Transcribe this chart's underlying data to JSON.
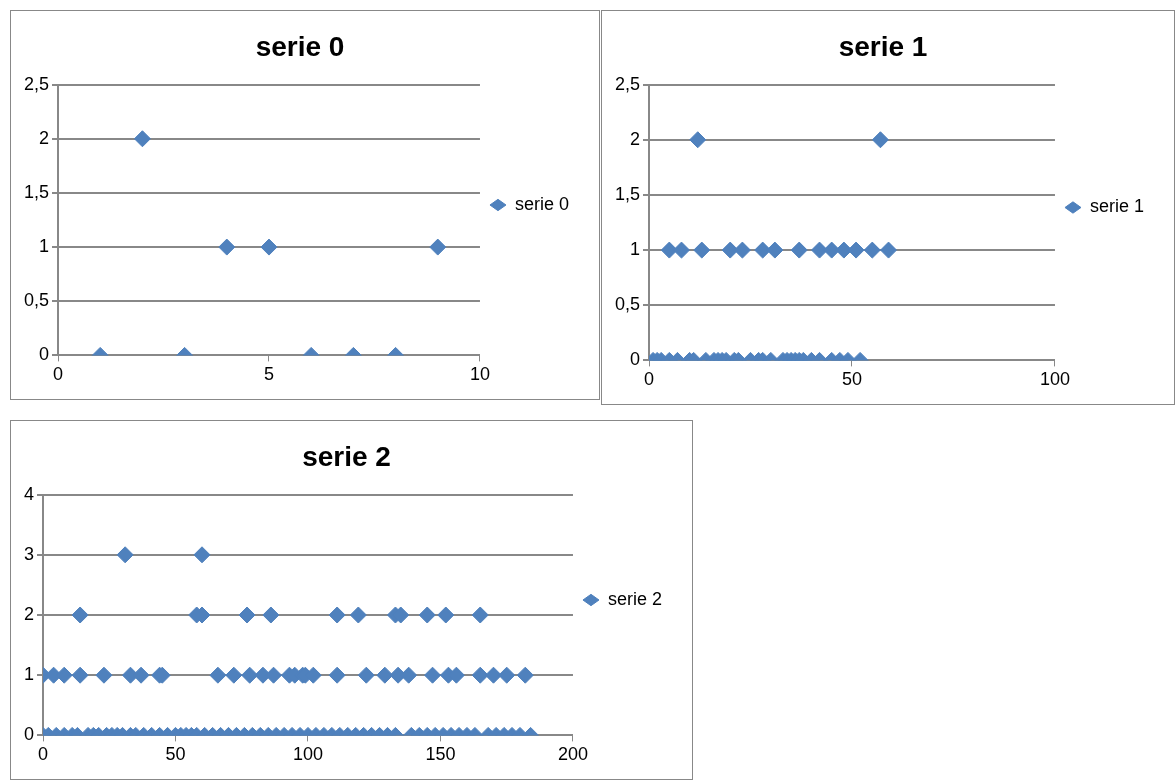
{
  "chart_data": [
    {
      "type": "scatter",
      "title": "serie 0",
      "marker": "diamond",
      "legend": "right",
      "grid": "y",
      "xlim": [
        0,
        10
      ],
      "xticks": [
        0,
        5,
        10
      ],
      "ylim": [
        0,
        2.5
      ],
      "yticks": [
        0,
        {
          "value": 0.5,
          "label": "0,5"
        },
        1,
        {
          "value": 1.5,
          "label": "1,5"
        },
        2,
        {
          "value": 2.5,
          "label": "2,5"
        }
      ],
      "series": [
        {
          "name": "serie 0",
          "color": "#4f81bd",
          "x": [
            1,
            2,
            3,
            4,
            5,
            6,
            7,
            8,
            9
          ],
          "values": [
            0,
            2,
            0,
            1,
            1,
            0,
            0,
            0,
            1
          ]
        }
      ]
    },
    {
      "type": "scatter",
      "title": "serie 1",
      "marker": "diamond",
      "legend": "right",
      "grid": "y",
      "xlim": [
        0,
        100
      ],
      "xticks": [
        0,
        50,
        100
      ],
      "ylim": [
        0,
        2.5
      ],
      "yticks": [
        0,
        {
          "value": 0.5,
          "label": "0,5"
        },
        1,
        {
          "value": 1.5,
          "label": "1,5"
        },
        2,
        {
          "value": 2.5,
          "label": "2,5"
        }
      ],
      "series": [
        {
          "name": "serie 1",
          "color": "#4f81bd",
          "x": [
            12,
            57,
            5,
            8,
            13,
            20,
            23,
            28,
            31,
            37,
            42,
            45,
            48,
            51,
            55,
            59,
            1,
            2,
            3,
            5,
            7,
            10,
            11,
            14,
            16,
            17,
            18,
            19,
            21,
            22,
            25,
            27,
            28,
            30,
            33,
            34,
            35,
            36,
            37,
            38,
            40,
            42,
            45,
            47,
            49,
            52
          ],
          "values": [
            2,
            2,
            1,
            1,
            1,
            1,
            1,
            1,
            1,
            1,
            1,
            1,
            1,
            1,
            1,
            1,
            0,
            0,
            0,
            0,
            0,
            0,
            0,
            0,
            0,
            0,
            0,
            0,
            0,
            0,
            0,
            0,
            0,
            0,
            0,
            0,
            0,
            0,
            0,
            0,
            0,
            0,
            0,
            0,
            0,
            0
          ]
        }
      ]
    },
    {
      "type": "scatter",
      "title": "serie 2",
      "marker": "diamond",
      "legend": "right",
      "grid": "y",
      "xlim": [
        0,
        200
      ],
      "xticks": [
        0,
        50,
        100,
        150,
        200
      ],
      "ylim": [
        0,
        4
      ],
      "yticks": [
        0,
        1,
        2,
        3,
        4
      ],
      "series": [
        {
          "name": "serie 2",
          "color": "#4f81bd",
          "x": [
            31,
            60,
            14,
            58,
            60,
            77,
            86,
            111,
            119,
            133,
            135,
            145,
            152,
            165,
            0,
            4,
            8,
            14,
            23,
            33,
            37,
            44,
            45,
            66,
            72,
            78,
            83,
            87,
            93,
            95,
            98,
            99,
            102,
            111,
            122,
            129,
            134,
            138,
            147,
            153,
            156,
            165,
            170,
            175,
            182,
            0,
            2,
            5,
            8,
            11,
            13,
            17,
            19,
            21,
            24,
            26,
            28,
            30,
            33,
            35,
            38,
            41,
            44,
            47,
            50,
            52,
            54,
            56,
            58,
            61,
            64,
            67,
            70,
            73,
            76,
            79,
            82,
            85,
            88,
            91,
            94,
            97,
            100,
            103,
            106,
            109,
            112,
            115,
            118,
            121,
            124,
            127,
            130,
            133,
            139,
            142,
            145,
            148,
            151,
            154,
            157,
            160,
            163,
            168,
            171,
            174,
            177,
            180,
            184
          ],
          "values": [
            3,
            3,
            2,
            2,
            2,
            2,
            2,
            2,
            2,
            2,
            2,
            2,
            2,
            2,
            1,
            1,
            1,
            1,
            1,
            1,
            1,
            1,
            1,
            1,
            1,
            1,
            1,
            1,
            1,
            1,
            1,
            1,
            1,
            1,
            1,
            1,
            1,
            1,
            1,
            1,
            1,
            1,
            1,
            1,
            1,
            0,
            0,
            0,
            0,
            0,
            0,
            0,
            0,
            0,
            0,
            0,
            0,
            0,
            0,
            0,
            0,
            0,
            0,
            0,
            0,
            0,
            0,
            0,
            0,
            0,
            0,
            0,
            0,
            0,
            0,
            0,
            0,
            0,
            0,
            0,
            0,
            0,
            0,
            0,
            0,
            0,
            0,
            0,
            0,
            0,
            0,
            0,
            0,
            0,
            0,
            0,
            0,
            0,
            0,
            0,
            0,
            0,
            0,
            0,
            0,
            0,
            0,
            0,
            0
          ]
        }
      ]
    }
  ]
}
